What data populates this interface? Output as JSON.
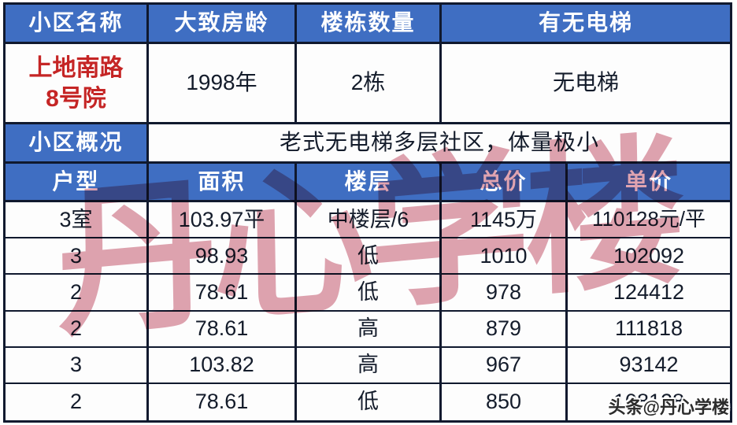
{
  "info_table": {
    "headers": [
      "小区名称",
      "大致房龄",
      "楼栋数量",
      "有无电梯"
    ],
    "community": {
      "line1": "上地南路",
      "line2": "8号院"
    },
    "age": "1998年",
    "building_count": "2栋",
    "elevator": "无电梯",
    "overview_label": "小区概况",
    "overview_text": "老式无电梯多层社区，体量极小"
  },
  "listing_table": {
    "headers": [
      "户型",
      "面积",
      "楼层",
      "总价",
      "单价"
    ],
    "rows": [
      [
        "3室",
        "103.97平",
        "中楼层/6",
        "1145万",
        "110128元/平"
      ],
      [
        "3",
        "98.93",
        "低",
        "1010",
        "102092"
      ],
      [
        "2",
        "78.61",
        "低",
        "978",
        "124412"
      ],
      [
        "2",
        "78.61",
        "高",
        "879",
        "111818"
      ],
      [
        "3",
        "103.82",
        "高",
        "967",
        "93142"
      ],
      [
        "2",
        "78.61",
        "低",
        "850",
        "108128"
      ]
    ]
  },
  "watermark": {
    "diagonal_text": "丹心学楼",
    "corner_text": "头条@丹心学楼"
  },
  "colors": {
    "header_blue": "#3f6ec2",
    "border_dark": "#10192e",
    "community_red": "#c52525",
    "watermark_pink": "#dfa3b0"
  }
}
